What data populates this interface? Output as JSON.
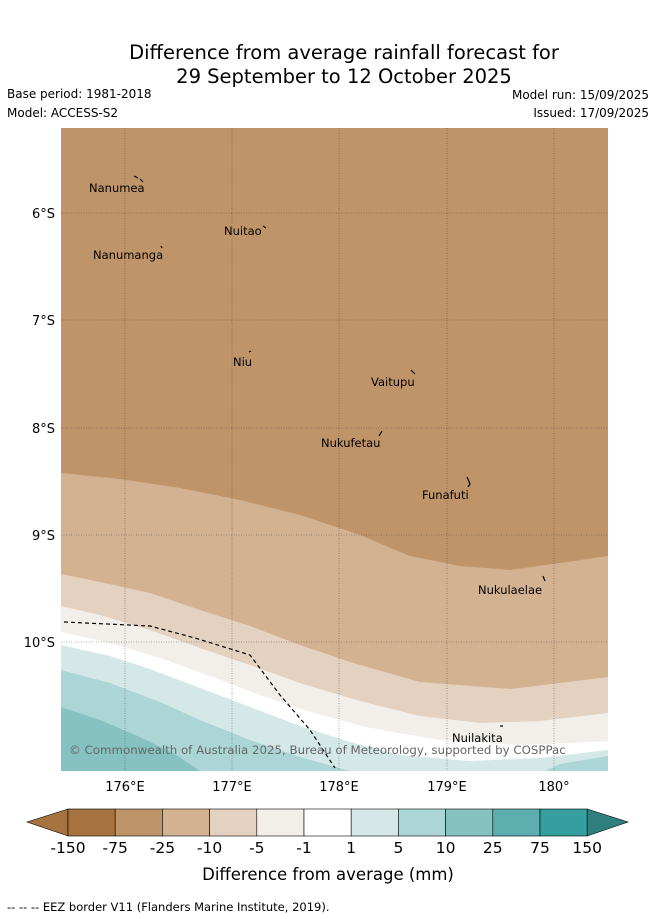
{
  "title_line1": "Difference from average rainfall forecast for",
  "title_line2": "29 September to 12 October 2025",
  "base_period": "Base period: 1981-2018",
  "model": "Model: ACCESS-S2",
  "model_run": "Model run: 15/09/2025",
  "issued": "Issued: 17/09/2025",
  "map": {
    "lon_ticks": [
      "176°E",
      "177°E",
      "178°E",
      "179°E",
      "180°"
    ],
    "lat_ticks": [
      "6°S",
      "7°S",
      "8°S",
      "9°S",
      "10°S"
    ],
    "places": [
      "Nanumea",
      "Nuitao",
      "Nanumanga",
      "Niu",
      "Vaitupu",
      "Nukufetau",
      "Funafuti",
      "Nukulaelae",
      "Nuilakita"
    ],
    "copyright": "© Commonwealth of Australia 2025, Bureau of Meteorology, supported by COSPPac",
    "colors": {
      "d150": "#a67240",
      "d75": "#c09469",
      "d25": "#d3b292",
      "d10": "#e4d1c0",
      "d5": "#f2eeea",
      "neutral": "#ffffff",
      "w5": "#d4e8e8",
      "w10": "#acd6d6",
      "w25": "#87c2c2",
      "w75": "#5daeae",
      "w150": "#359e9e",
      "w150p": "#2f7f7f"
    }
  },
  "colorbar": {
    "ticks": [
      "-150",
      "-75",
      "-25",
      "-10",
      "-5",
      "-1",
      "1",
      "5",
      "10",
      "25",
      "75",
      "150"
    ],
    "label": "Difference from average (mm)"
  },
  "footer": "--  --  -- EEZ border V11 (Flanders Marine Institute, 2019)."
}
